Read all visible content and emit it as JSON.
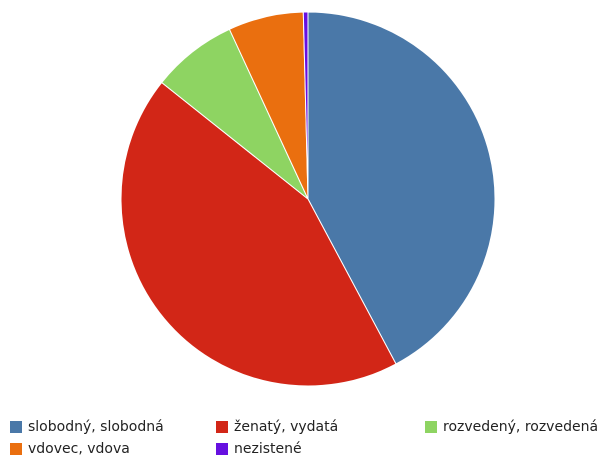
{
  "chart_data": {
    "type": "pie",
    "title": "",
    "start_angle_deg": 0,
    "direction": "clockwise",
    "slices": [
      {
        "label": "slobodný, slobodná",
        "value": 42.2,
        "color": "#4a78a8"
      },
      {
        "label": "ženatý, vydatá",
        "value": 43.5,
        "color": "#d22617"
      },
      {
        "label": "rozvedený, rozvedená",
        "value": 7.4,
        "color": "#8ed462"
      },
      {
        "label": "vdovec, vdova",
        "value": 6.5,
        "color": "#ea6f0f"
      },
      {
        "label": "nezistené",
        "value": 0.4,
        "color": "#6610e0"
      }
    ],
    "legend_position": "bottom"
  }
}
